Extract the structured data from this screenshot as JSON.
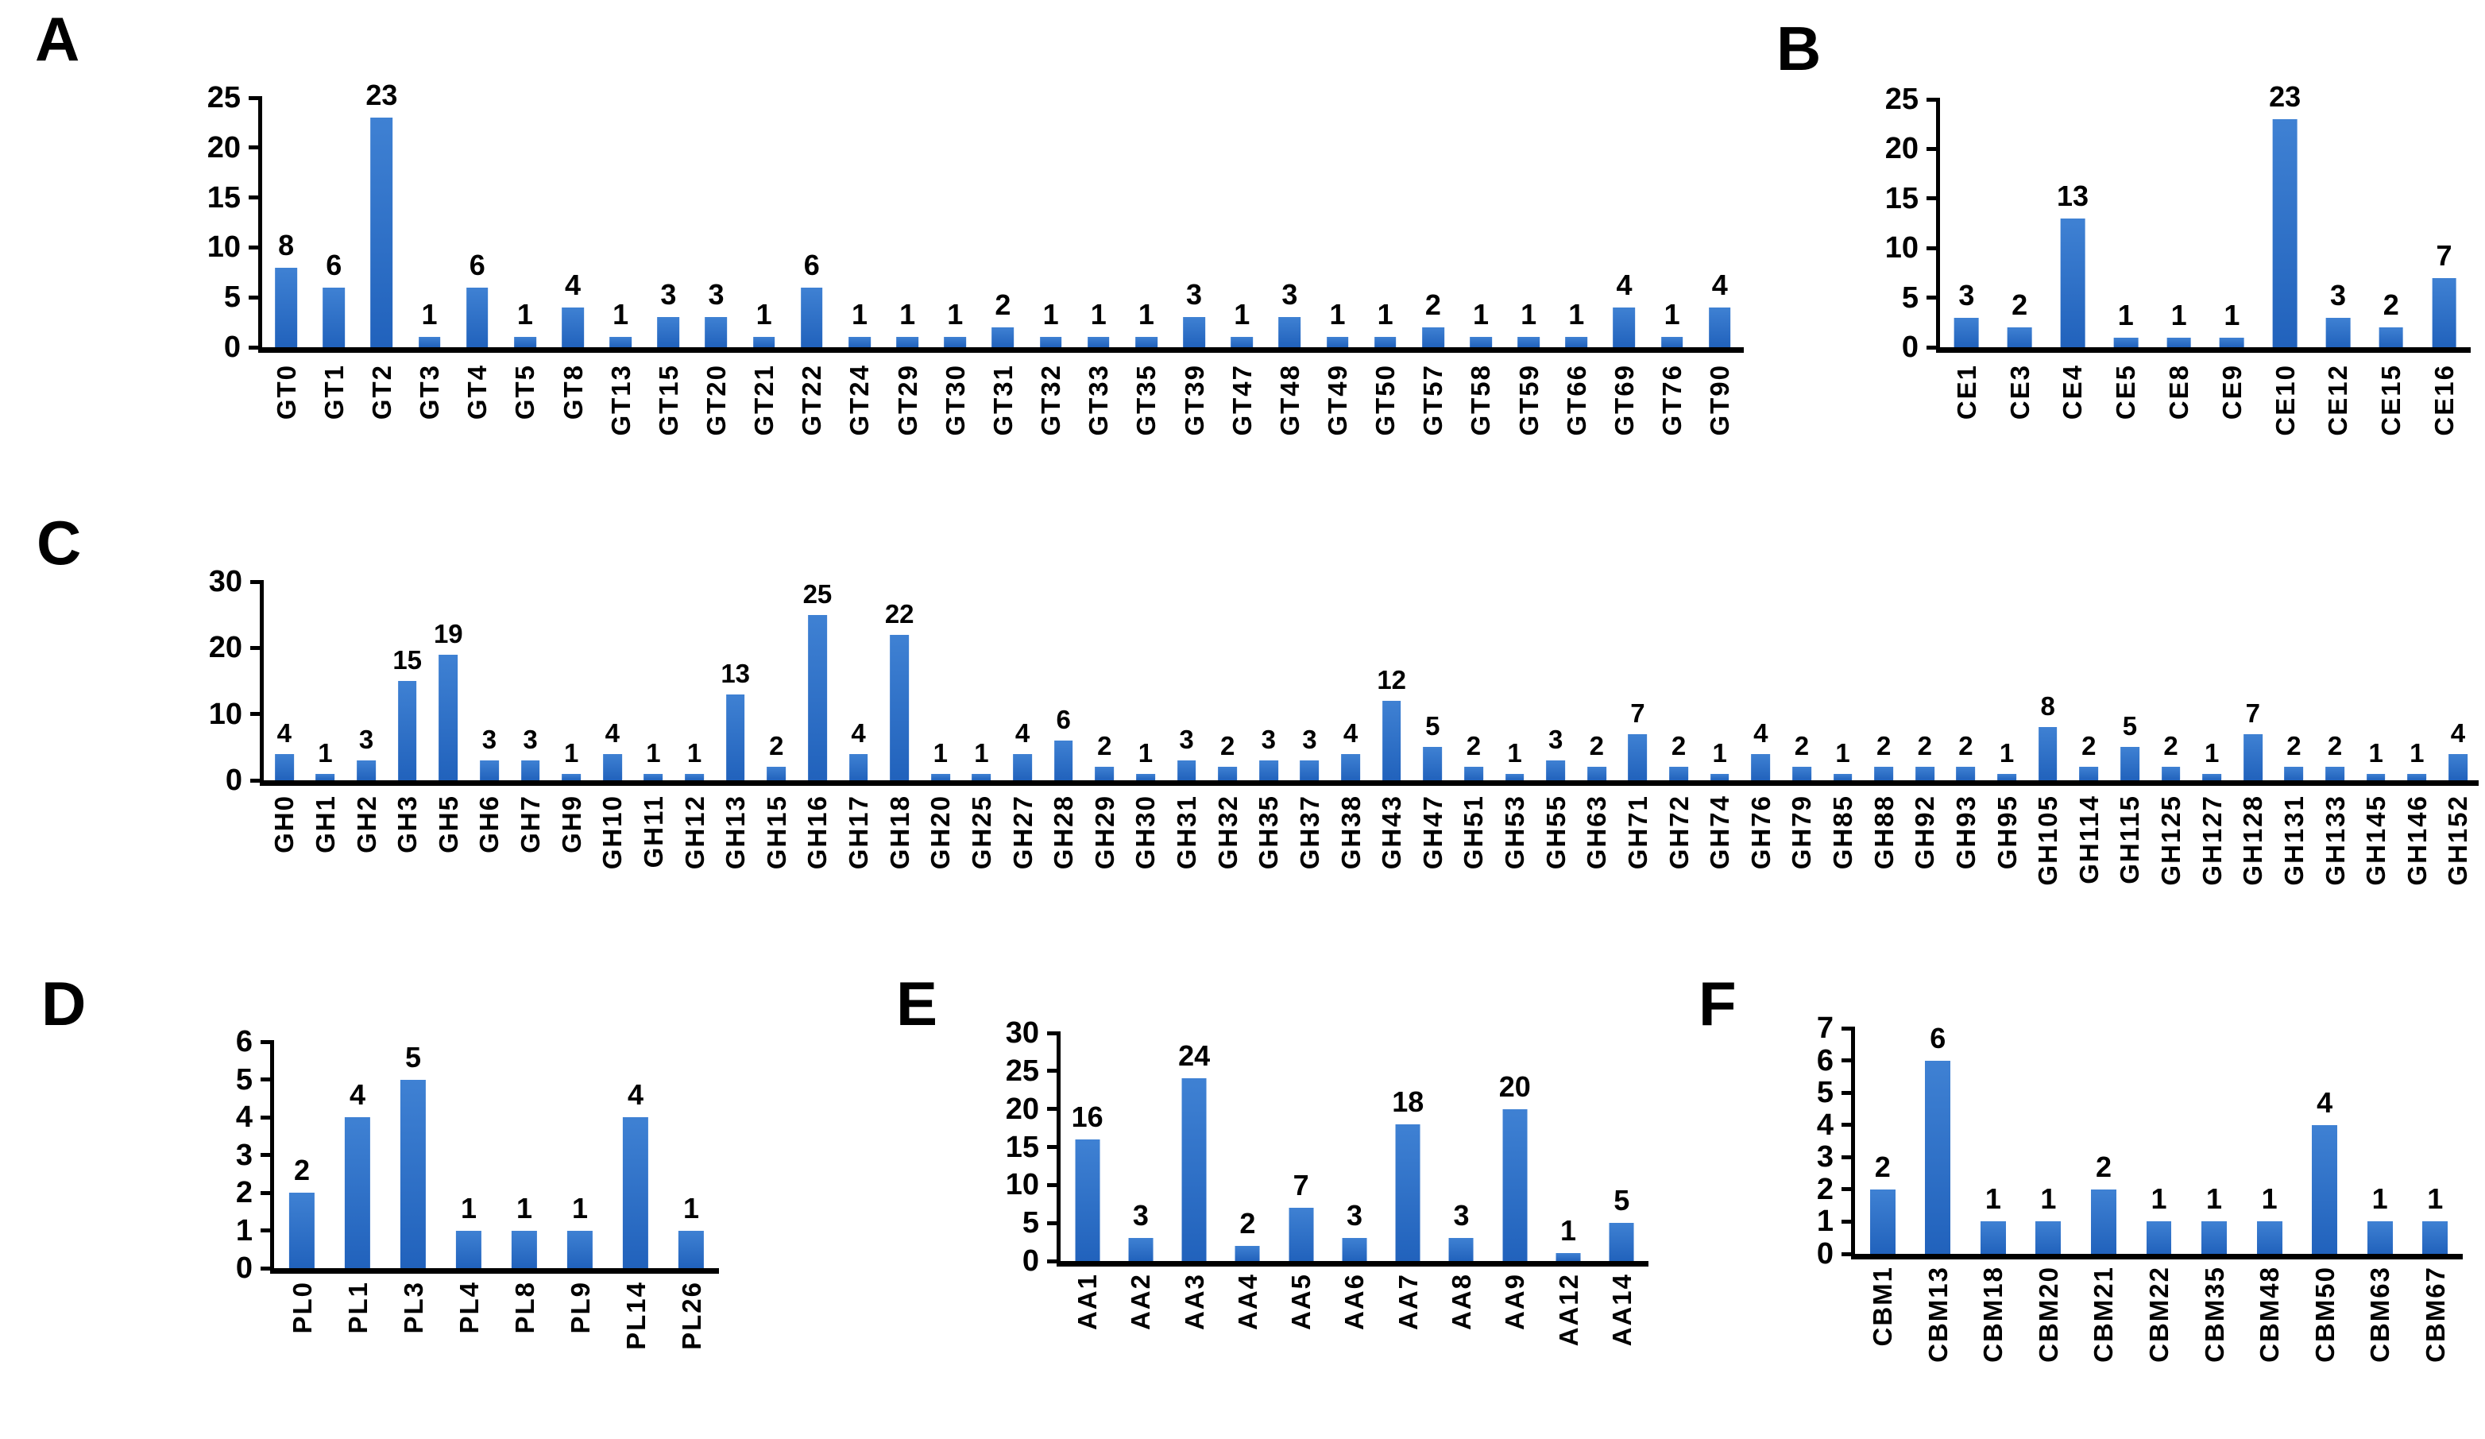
{
  "figure": {
    "background": "#ffffff",
    "text_color": "#000000",
    "axis_color": "#000000",
    "bar_color": "#2e73c8",
    "bar_gradient_top": "#3f81d3",
    "bar_gradient_bottom": "#2162bc"
  },
  "chart_data": [
    {
      "panel": "A",
      "type": "bar",
      "title": "",
      "xlabel": "",
      "ylabel": "",
      "ylim": [
        0,
        25
      ],
      "yticks": [
        0,
        5,
        10,
        15,
        20,
        25
      ],
      "grid": false,
      "legend": false,
      "categories": [
        "GT0",
        "GT1",
        "GT2",
        "GT3",
        "GT4",
        "GT5",
        "GT8",
        "GT13",
        "GT15",
        "GT20",
        "GT21",
        "GT22",
        "GT24",
        "GT29",
        "GT30",
        "GT31",
        "GT32",
        "GT33",
        "GT35",
        "GT39",
        "GT47",
        "GT48",
        "GT49",
        "GT50",
        "GT57",
        "GT58",
        "GT59",
        "GT66",
        "GT69",
        "GT76",
        "GT90"
      ],
      "values": [
        8,
        6,
        23,
        1,
        6,
        1,
        4,
        1,
        3,
        3,
        1,
        6,
        1,
        1,
        1,
        2,
        1,
        1,
        1,
        3,
        1,
        3,
        1,
        1,
        2,
        1,
        1,
        1,
        4,
        1,
        4
      ]
    },
    {
      "panel": "B",
      "type": "bar",
      "title": "",
      "xlabel": "",
      "ylabel": "",
      "ylim": [
        0,
        25
      ],
      "yticks": [
        0,
        5,
        10,
        15,
        20,
        25
      ],
      "grid": false,
      "legend": false,
      "categories": [
        "CE1",
        "CE3",
        "CE4",
        "CE5",
        "CE8",
        "CE9",
        "CE10",
        "CE12",
        "CE15",
        "CE16"
      ],
      "values": [
        3,
        2,
        13,
        1,
        1,
        1,
        23,
        3,
        2,
        7
      ]
    },
    {
      "panel": "C",
      "type": "bar",
      "title": "",
      "xlabel": "",
      "ylabel": "",
      "ylim": [
        0,
        30
      ],
      "yticks": [
        0,
        10,
        20,
        30
      ],
      "grid": false,
      "legend": false,
      "categories": [
        "GH0",
        "GH1",
        "GH2",
        "GH3",
        "GH5",
        "GH6",
        "GH7",
        "GH9",
        "GH10",
        "GH11",
        "GH12",
        "GH13",
        "GH15",
        "GH16",
        "GH17",
        "GH18",
        "GH20",
        "GH25",
        "GH27",
        "GH28",
        "GH29",
        "GH30",
        "GH31",
        "GH32",
        "GH35",
        "GH37",
        "GH38",
        "GH43",
        "GH47",
        "GH51",
        "GH53",
        "GH55",
        "GH63",
        "GH71",
        "GH72",
        "GH74",
        "GH76",
        "GH79",
        "GH85",
        "GH88",
        "GH92",
        "GH93",
        "GH95",
        "GH105",
        "GH114",
        "GH115",
        "GH125",
        "GH127",
        "GH128",
        "GH131",
        "GH133",
        "GH145",
        "GH146",
        "GH152"
      ],
      "values": [
        4,
        1,
        3,
        15,
        19,
        3,
        3,
        1,
        4,
        1,
        1,
        13,
        2,
        25,
        4,
        22,
        1,
        1,
        4,
        6,
        2,
        1,
        3,
        2,
        3,
        3,
        4,
        12,
        5,
        2,
        1,
        3,
        2,
        7,
        2,
        1,
        4,
        2,
        1,
        2,
        2,
        2,
        1,
        8,
        2,
        5,
        2,
        1,
        7,
        2,
        2,
        1,
        1,
        4
      ]
    },
    {
      "panel": "D",
      "type": "bar",
      "title": "",
      "xlabel": "",
      "ylabel": "",
      "ylim": [
        0,
        6
      ],
      "yticks": [
        0,
        1,
        2,
        3,
        4,
        5,
        6
      ],
      "grid": false,
      "legend": false,
      "categories": [
        "PL0",
        "PL1",
        "PL3",
        "PL4",
        "PL8",
        "PL9",
        "PL14",
        "PL26"
      ],
      "values": [
        2,
        4,
        5,
        1,
        1,
        1,
        4,
        1
      ]
    },
    {
      "panel": "E",
      "type": "bar",
      "title": "",
      "xlabel": "",
      "ylabel": "",
      "ylim": [
        0,
        30
      ],
      "yticks": [
        0,
        5,
        10,
        15,
        20,
        25,
        30
      ],
      "grid": false,
      "legend": false,
      "categories": [
        "AA1",
        "AA2",
        "AA3",
        "AA4",
        "AA5",
        "AA6",
        "AA7",
        "AA8",
        "AA9",
        "AA12",
        "AA14"
      ],
      "values": [
        16,
        3,
        24,
        2,
        7,
        3,
        18,
        3,
        20,
        1,
        5
      ]
    },
    {
      "panel": "F",
      "type": "bar",
      "title": "",
      "xlabel": "",
      "ylabel": "",
      "ylim": [
        0,
        7
      ],
      "yticks": [
        0,
        1,
        2,
        3,
        4,
        5,
        6,
        7
      ],
      "grid": false,
      "legend": false,
      "categories": [
        "CBM1",
        "CBM13",
        "CBM18",
        "CBM20",
        "CBM21",
        "CBM22",
        "CBM35",
        "CBM48",
        "CBM50",
        "CBM63",
        "CBM67"
      ],
      "values": [
        2,
        6,
        1,
        1,
        2,
        1,
        1,
        1,
        4,
        1,
        1
      ]
    }
  ]
}
